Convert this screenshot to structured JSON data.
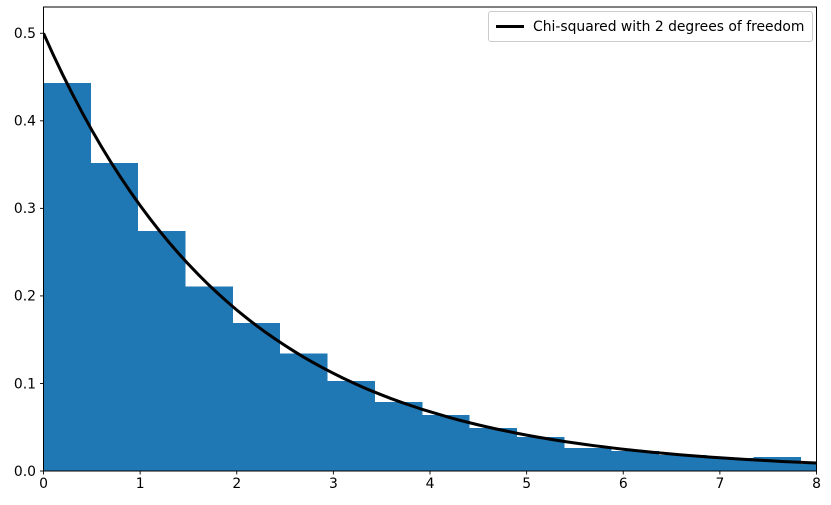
{
  "chart_data": {
    "type": "bar",
    "subtype": "histogram-with-line-overlay",
    "title": "",
    "xlabel": "",
    "ylabel": "",
    "xlim": [
      0,
      8
    ],
    "ylim": [
      0,
      0.53
    ],
    "grid": false,
    "x_ticks": [
      0,
      1,
      2,
      3,
      4,
      5,
      6,
      7,
      8
    ],
    "x_tick_labels": [
      "0",
      "1",
      "2",
      "3",
      "4",
      "5",
      "6",
      "7",
      "8"
    ],
    "y_ticks": [
      0.0,
      0.1,
      0.2,
      0.3,
      0.4,
      0.5
    ],
    "y_tick_labels": [
      "0.0",
      "0.1",
      "0.2",
      "0.3",
      "0.4",
      "0.5"
    ],
    "histogram": {
      "bar_color": "#1f77b4",
      "bin_edges": [
        0.0,
        0.49,
        0.98,
        1.47,
        1.96,
        2.45,
        2.94,
        3.43,
        3.92,
        4.41,
        4.9,
        5.39,
        5.88,
        6.37,
        6.86,
        7.35,
        7.84,
        8.33
      ],
      "densities": [
        0.443,
        0.352,
        0.274,
        0.211,
        0.169,
        0.134,
        0.103,
        0.079,
        0.064,
        0.049,
        0.039,
        0.026,
        0.023,
        0.018,
        0.015,
        0.016,
        0.008
      ]
    },
    "curve": {
      "name": "Chi-squared with 2 degrees of freedom",
      "formula": "0.5*exp(-x/2)",
      "color": "#000000",
      "line_width": 3,
      "x": [
        0.0,
        0.1,
        0.2,
        0.3,
        0.4,
        0.5,
        0.6,
        0.7,
        0.8,
        0.9,
        1.0,
        1.1,
        1.2,
        1.3,
        1.4,
        1.5,
        1.6,
        1.7,
        1.8,
        1.9,
        2.0,
        2.1,
        2.2,
        2.3,
        2.4,
        2.5,
        2.6,
        2.7,
        2.8,
        2.9,
        3.0,
        3.1,
        3.2,
        3.3,
        3.4,
        3.5,
        3.6,
        3.7,
        3.8,
        3.9,
        4.0,
        4.1,
        4.2,
        4.3,
        4.4,
        4.5,
        4.6,
        4.7,
        4.8,
        4.9,
        5.0,
        5.1,
        5.2,
        5.3,
        5.4,
        5.5,
        5.6,
        5.7,
        5.8,
        5.9,
        6.0,
        6.1,
        6.2,
        6.3,
        6.4,
        6.5,
        6.6,
        6.7,
        6.8,
        6.9,
        7.0,
        7.1,
        7.2,
        7.3,
        7.4,
        7.5,
        7.6,
        7.7,
        7.8,
        7.9,
        8.0
      ],
      "y": [
        0.5,
        0.4756,
        0.4524,
        0.4304,
        0.4094,
        0.3894,
        0.3704,
        0.3523,
        0.3352,
        0.3188,
        0.3033,
        0.2885,
        0.2744,
        0.261,
        0.2483,
        0.2362,
        0.2247,
        0.2137,
        0.2033,
        0.1934,
        0.1839,
        0.175,
        0.1664,
        0.1583,
        0.1506,
        0.1433,
        0.1363,
        0.1296,
        0.1233,
        0.1173,
        0.1116,
        0.1061,
        0.101,
        0.096,
        0.0913,
        0.0869,
        0.0826,
        0.0786,
        0.0748,
        0.0711,
        0.0677,
        0.0644,
        0.0612,
        0.0582,
        0.0554,
        0.0527,
        0.0501,
        0.0477,
        0.0454,
        0.0431,
        0.041,
        0.039,
        0.0371,
        0.0353,
        0.0336,
        0.032,
        0.0304,
        0.0289,
        0.0275,
        0.0262,
        0.0249,
        0.0237,
        0.0225,
        0.0214,
        0.0204,
        0.0194,
        0.0184,
        0.0175,
        0.0167,
        0.0159,
        0.0151,
        0.0144,
        0.0137,
        0.013,
        0.0124,
        0.0118,
        0.0112,
        0.0106,
        0.0101,
        0.0096,
        0.0092
      ]
    },
    "legend": {
      "position": "upper right",
      "entries": [
        {
          "label": "Chi-squared with 2 degrees of freedom",
          "color": "#000000"
        }
      ]
    }
  }
}
